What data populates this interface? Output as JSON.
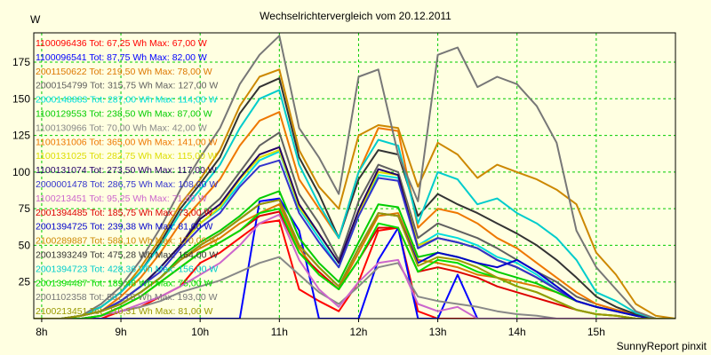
{
  "chart_data": {
    "type": "line",
    "title": "Wechselrichtervergleich vom 20.12.2011",
    "ylabel": "W",
    "xlabel": "",
    "footer": "SunnyReport pinxit",
    "x_ticks": [
      "8h",
      "9h",
      "10h",
      "11h",
      "12h",
      "13h",
      "14h",
      "15h"
    ],
    "y_ticks": [
      25,
      50,
      75,
      100,
      125,
      150,
      175
    ],
    "xlim": [
      7.9,
      16.0
    ],
    "ylim": [
      0,
      195
    ],
    "grid": true,
    "legend_position": "top-left",
    "x": [
      7.75,
      8.0,
      8.25,
      8.5,
      8.75,
      9.0,
      9.25,
      9.5,
      9.75,
      10.0,
      10.25,
      10.5,
      10.75,
      11.0,
      11.25,
      11.5,
      11.75,
      12.0,
      12.25,
      12.5,
      12.75,
      13.0,
      13.25,
      13.5,
      13.75,
      14.0,
      14.25,
      14.5,
      14.75,
      15.0,
      15.25,
      15.5,
      15.75,
      16.0
    ],
    "series": [
      {
        "name": "1100096436",
        "tot": "67,25",
        "max": "67,00",
        "color": "#ff0000",
        "values": [
          0,
          0,
          0,
          0,
          0,
          5,
          8,
          15,
          22,
          38,
          45,
          55,
          65,
          67,
          20,
          12,
          5,
          25,
          60,
          62,
          5,
          0,
          0,
          0,
          0,
          0,
          0,
          0,
          0,
          0,
          0,
          0,
          0,
          0
        ]
      },
      {
        "name": "1100096541",
        "tot": "87,75",
        "max": "82,00",
        "color": "#0000ff",
        "values": [
          0,
          0,
          0,
          0,
          0,
          0,
          0,
          0,
          0,
          0,
          0,
          0,
          80,
          82,
          60,
          0,
          0,
          0,
          40,
          62,
          0,
          0,
          30,
          0,
          0,
          0,
          0,
          0,
          0,
          0,
          0,
          0,
          0,
          0
        ]
      },
      {
        "name": "2001150622",
        "tot": "219,50",
        "max": "78,00",
        "color": "#dd7700",
        "values": [
          0,
          0,
          0,
          2,
          5,
          10,
          18,
          28,
          40,
          48,
          55,
          65,
          72,
          78,
          48,
          30,
          20,
          45,
          70,
          72,
          40,
          38,
          35,
          30,
          28,
          25,
          22,
          18,
          12,
          8,
          5,
          2,
          0,
          0
        ]
      },
      {
        "name": "2000154799",
        "tot": "315,75",
        "max": "127,00",
        "color": "#606060",
        "values": [
          0,
          0,
          0,
          2,
          5,
          12,
          22,
          35,
          50,
          70,
          82,
          100,
          118,
          127,
          85,
          65,
          40,
          80,
          105,
          100,
          55,
          65,
          60,
          55,
          48,
          40,
          32,
          25,
          15,
          10,
          6,
          3,
          0,
          0
        ]
      },
      {
        "name": "2000148883",
        "tot": "287,00",
        "max": "114,00",
        "color": "#00dddd",
        "values": [
          0,
          0,
          0,
          2,
          5,
          12,
          22,
          35,
          50,
          65,
          75,
          92,
          108,
          114,
          75,
          55,
          35,
          70,
          98,
          96,
          50,
          58,
          55,
          50,
          42,
          38,
          30,
          20,
          12,
          8,
          5,
          2,
          0,
          0
        ]
      },
      {
        "name": "1100129553",
        "tot": "238,50",
        "max": "87,00",
        "color": "#00cc00",
        "values": [
          0,
          0,
          0,
          2,
          5,
          10,
          18,
          28,
          42,
          52,
          60,
          70,
          82,
          87,
          55,
          38,
          25,
          52,
          78,
          76,
          42,
          45,
          42,
          38,
          32,
          28,
          24,
          18,
          12,
          8,
          5,
          2,
          0,
          0
        ]
      },
      {
        "name": "1100130966",
        "tot": "70,00",
        "max": "42,00",
        "color": "#888888",
        "values": [
          0,
          0,
          0,
          0,
          2,
          5,
          8,
          12,
          18,
          22,
          26,
          32,
          38,
          42,
          30,
          18,
          10,
          22,
          35,
          38,
          15,
          12,
          10,
          8,
          5,
          3,
          2,
          0,
          0,
          0,
          0,
          0,
          0,
          0
        ]
      },
      {
        "name": "1100131006",
        "tot": "365,00",
        "max": "141,00",
        "color": "#ee7700",
        "values": [
          0,
          0,
          0,
          2,
          5,
          15,
          28,
          45,
          65,
          80,
          95,
          118,
          135,
          141,
          95,
          75,
          55,
          100,
          130,
          128,
          62,
          75,
          72,
          65,
          55,
          48,
          38,
          28,
          18,
          10,
          6,
          3,
          0,
          0
        ]
      },
      {
        "name": "1100131025",
        "tot": "282,75",
        "max": "115,00",
        "color": "#dddd00",
        "values": [
          0,
          0,
          0,
          2,
          5,
          12,
          22,
          35,
          50,
          65,
          76,
          95,
          110,
          115,
          76,
          58,
          38,
          72,
          100,
          98,
          50,
          55,
          52,
          48,
          40,
          35,
          28,
          20,
          12,
          8,
          5,
          2,
          0,
          0
        ]
      },
      {
        "name": "1100131074",
        "tot": "273,50",
        "max": "117,00",
        "color": "#220066",
        "values": [
          0,
          0,
          0,
          2,
          5,
          12,
          22,
          35,
          50,
          68,
          78,
          96,
          112,
          117,
          78,
          58,
          38,
          74,
          102,
          98,
          48,
          55,
          52,
          48,
          40,
          35,
          28,
          20,
          12,
          8,
          5,
          2,
          0,
          0
        ]
      },
      {
        "name": "2000001478",
        "tot": "286,75",
        "max": "108,00",
        "color": "#3333cc",
        "values": [
          0,
          0,
          0,
          2,
          5,
          12,
          22,
          32,
          48,
          62,
          72,
          90,
          104,
          108,
          72,
          52,
          35,
          70,
          96,
          94,
          48,
          55,
          52,
          48,
          40,
          35,
          28,
          20,
          12,
          8,
          5,
          2,
          0,
          0
        ]
      },
      {
        "name": "1100213451",
        "tot": "95,25",
        "max": "71,00",
        "color": "#cc66cc",
        "values": [
          0,
          0,
          0,
          0,
          2,
          5,
          10,
          15,
          22,
          30,
          38,
          50,
          65,
          71,
          40,
          20,
          8,
          25,
          38,
          40,
          10,
          5,
          8,
          0,
          0,
          0,
          0,
          0,
          0,
          0,
          0,
          0,
          0,
          0
        ]
      },
      {
        "name": "2001394485",
        "tot": "185,75",
        "max": "73,00",
        "color": "#dd0000",
        "values": [
          0,
          0,
          0,
          0,
          2,
          8,
          15,
          25,
          35,
          45,
          52,
          60,
          70,
          73,
          45,
          32,
          20,
          40,
          62,
          62,
          32,
          35,
          32,
          28,
          22,
          18,
          14,
          10,
          6,
          3,
          2,
          0,
          0,
          0
        ]
      },
      {
        "name": "2001394725",
        "tot": "239,38",
        "max": "81,00",
        "color": "#0000cc",
        "values": [
          0,
          0,
          0,
          2,
          5,
          10,
          18,
          28,
          40,
          50,
          58,
          68,
          78,
          81,
          50,
          35,
          22,
          48,
          72,
          70,
          38,
          45,
          42,
          38,
          35,
          40,
          32,
          22,
          12,
          8,
          5,
          2,
          0,
          0
        ]
      },
      {
        "name": "2100289887",
        "tot": "588,10",
        "max": "170,00",
        "color": "#cc8800",
        "values": [
          0,
          0,
          0,
          2,
          8,
          18,
          35,
          55,
          78,
          95,
          115,
          145,
          165,
          170,
          115,
          90,
          75,
          125,
          132,
          130,
          90,
          120,
          112,
          96,
          105,
          100,
          95,
          88,
          78,
          45,
          30,
          10,
          2,
          0
        ]
      },
      {
        "name": "2001393249",
        "tot": "475,28",
        "max": "164,00",
        "color": "#333333",
        "values": [
          0,
          0,
          0,
          2,
          8,
          18,
          32,
          52,
          75,
          92,
          110,
          140,
          158,
          164,
          110,
          85,
          55,
          95,
          115,
          112,
          70,
          85,
          78,
          72,
          65,
          58,
          50,
          40,
          28,
          15,
          8,
          3,
          0,
          0
        ]
      },
      {
        "name": "2001394723",
        "tot": "428,36",
        "max": "156,00",
        "color": "#00cccc",
        "values": [
          0,
          0,
          0,
          2,
          8,
          18,
          32,
          50,
          72,
          88,
          105,
          130,
          150,
          156,
          105,
          78,
          55,
          100,
          122,
          118,
          65,
          100,
          95,
          78,
          82,
          72,
          65,
          55,
          40,
          18,
          12,
          4,
          0,
          0
        ]
      },
      {
        "name": "2001394487",
        "tot": "189,48",
        "max": "75,00",
        "color": "#00dd00",
        "values": [
          0,
          0,
          0,
          0,
          2,
          8,
          15,
          25,
          35,
          45,
          52,
          60,
          72,
          75,
          45,
          30,
          20,
          40,
          65,
          62,
          32,
          40,
          38,
          32,
          28,
          22,
          18,
          12,
          6,
          3,
          2,
          0,
          0,
          0
        ]
      },
      {
        "name": "2001102358",
        "tot": "507,75",
        "max": "193,00",
        "color": "#777777",
        "values": [
          0,
          0,
          0,
          2,
          10,
          22,
          40,
          62,
          88,
          110,
          130,
          160,
          180,
          193,
          130,
          110,
          85,
          165,
          170,
          112,
          80,
          180,
          185,
          158,
          165,
          160,
          145,
          120,
          60,
          35,
          20,
          5,
          0,
          0
        ]
      },
      {
        "name": "2100213451",
        "tot": "210,31",
        "max": "81,00",
        "color": "#999900",
        "values": [
          0,
          0,
          0,
          2,
          5,
          10,
          18,
          28,
          40,
          50,
          58,
          68,
          78,
          81,
          50,
          35,
          22,
          48,
          72,
          70,
          36,
          42,
          40,
          35,
          28,
          22,
          18,
          12,
          6,
          3,
          2,
          0,
          0,
          0
        ]
      }
    ]
  }
}
